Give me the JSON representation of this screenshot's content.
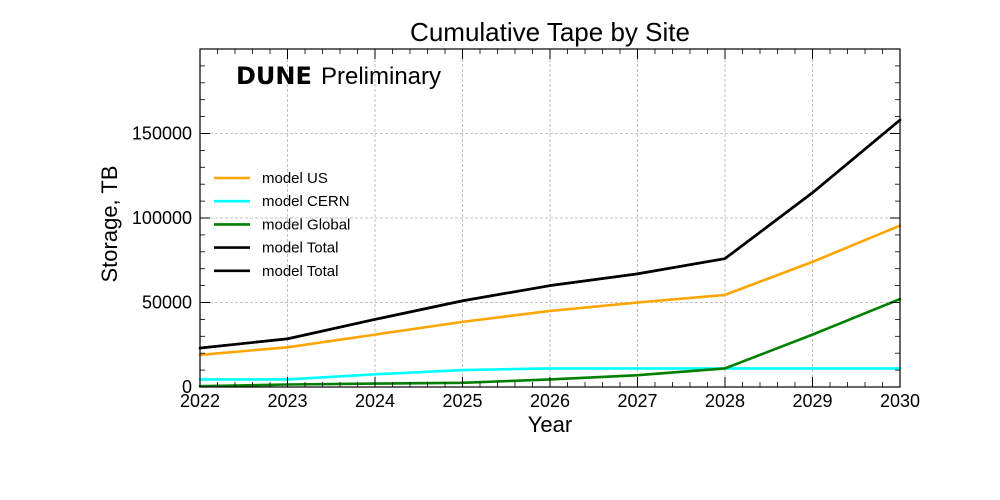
{
  "chart_data": {
    "type": "line",
    "title": "Cumulative Tape by Site",
    "xlabel": "Year",
    "ylabel": "Storage, TB",
    "x": [
      2022,
      2023,
      2024,
      2025,
      2026,
      2027,
      2028,
      2029,
      2030
    ],
    "xlim": [
      2022,
      2030
    ],
    "ylim": [
      0,
      200000
    ],
    "xticks": [
      "2022",
      "2023",
      "2024",
      "2025",
      "2026",
      "2027",
      "2028",
      "2029",
      "2030"
    ],
    "yticks": [
      0,
      50000,
      100000,
      150000
    ],
    "ytick_labels": [
      "0",
      "50000",
      "100000",
      "150000"
    ],
    "grid": true,
    "legend_position": "center-left",
    "brand": {
      "bold": "DUNE",
      "rest": "Preliminary"
    },
    "series": [
      {
        "name": "model US",
        "color": "#ffa500",
        "values": [
          19000,
          23500,
          31000,
          38500,
          45000,
          50000,
          54500,
          74000,
          95500
        ]
      },
      {
        "name": "model CERN",
        "color": "#00ffff",
        "values": [
          4500,
          4500,
          7500,
          10000,
          11000,
          11000,
          11000,
          11000,
          11000
        ]
      },
      {
        "name": "model Global",
        "color": "#008000",
        "values": [
          500,
          1500,
          2000,
          2500,
          4500,
          7000,
          11000,
          31000,
          52000
        ]
      },
      {
        "name": "model Total",
        "color": "#000000",
        "values": [
          23000,
          28500,
          40000,
          51000,
          60000,
          67000,
          76000,
          115000,
          158000
        ]
      },
      {
        "name": "model Total",
        "color": "#000000",
        "values": [
          23000,
          28500,
          40000,
          51000,
          60000,
          67000,
          76000,
          115000,
          158000
        ]
      }
    ]
  }
}
